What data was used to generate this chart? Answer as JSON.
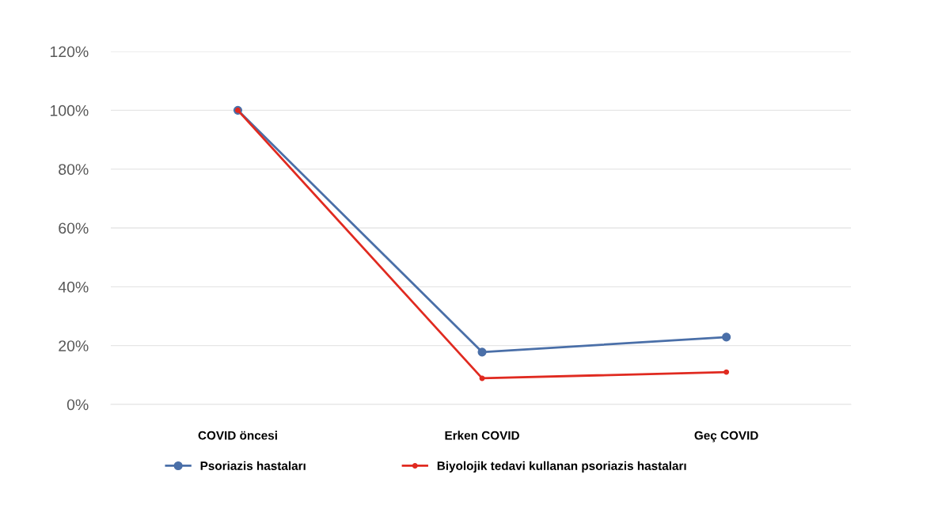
{
  "chart_data": {
    "type": "line",
    "categories": [
      "COVID öncesi",
      "Erken COVID",
      "Geç COVID"
    ],
    "series": [
      {
        "name": "Psoriazis hastaları",
        "color": "#4a6fa8",
        "values": [
          100,
          17.8,
          22.9
        ]
      },
      {
        "name": "Biyolojik tedavi kullanan psoriazis hastaları",
        "color": "#e02a20",
        "values": [
          100,
          8.9,
          11
        ]
      }
    ],
    "ylim": [
      0,
      120
    ],
    "yticks": [
      {
        "value": 0,
        "label": "0%"
      },
      {
        "value": 20,
        "label": "20%"
      },
      {
        "value": 40,
        "label": "40%"
      },
      {
        "value": 60,
        "label": "60%"
      },
      {
        "value": 80,
        "label": "80%"
      },
      {
        "value": 100,
        "label": "100%"
      },
      {
        "value": 120,
        "label": "120%"
      }
    ],
    "grid": "y",
    "legend": "bottom",
    "marker": "circle",
    "line_style": "solid"
  }
}
